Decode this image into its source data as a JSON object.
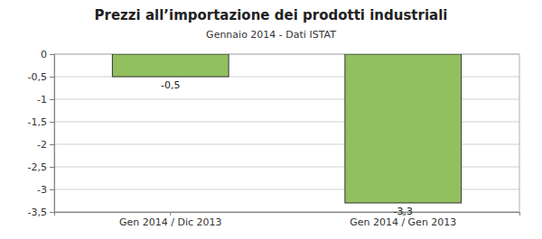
{
  "chart_data": {
    "type": "bar",
    "title": "Prezzi all’importazione dei prodotti industriali",
    "subtitle": "Gennaio 2014 - Dati ISTAT",
    "categories": [
      "Gen 2014 / Dic 2013",
      "Gen 2014 / Gen 2013"
    ],
    "values": [
      -0.5,
      -3.3
    ],
    "value_labels": [
      "-0,5",
      "-3,3"
    ],
    "data_labels": true,
    "color": "#92c05e",
    "ylim": [
      -3.5,
      0
    ],
    "yticks": [
      0,
      {
        "value": -0.5,
        "label": "-0,5"
      },
      -1,
      {
        "value": -1.5,
        "label": "-1,5"
      },
      -2,
      {
        "value": -2.5,
        "label": "-2,5"
      },
      -3,
      {
        "value": -3.5,
        "label": "-3,5"
      }
    ],
    "grid": true
  }
}
